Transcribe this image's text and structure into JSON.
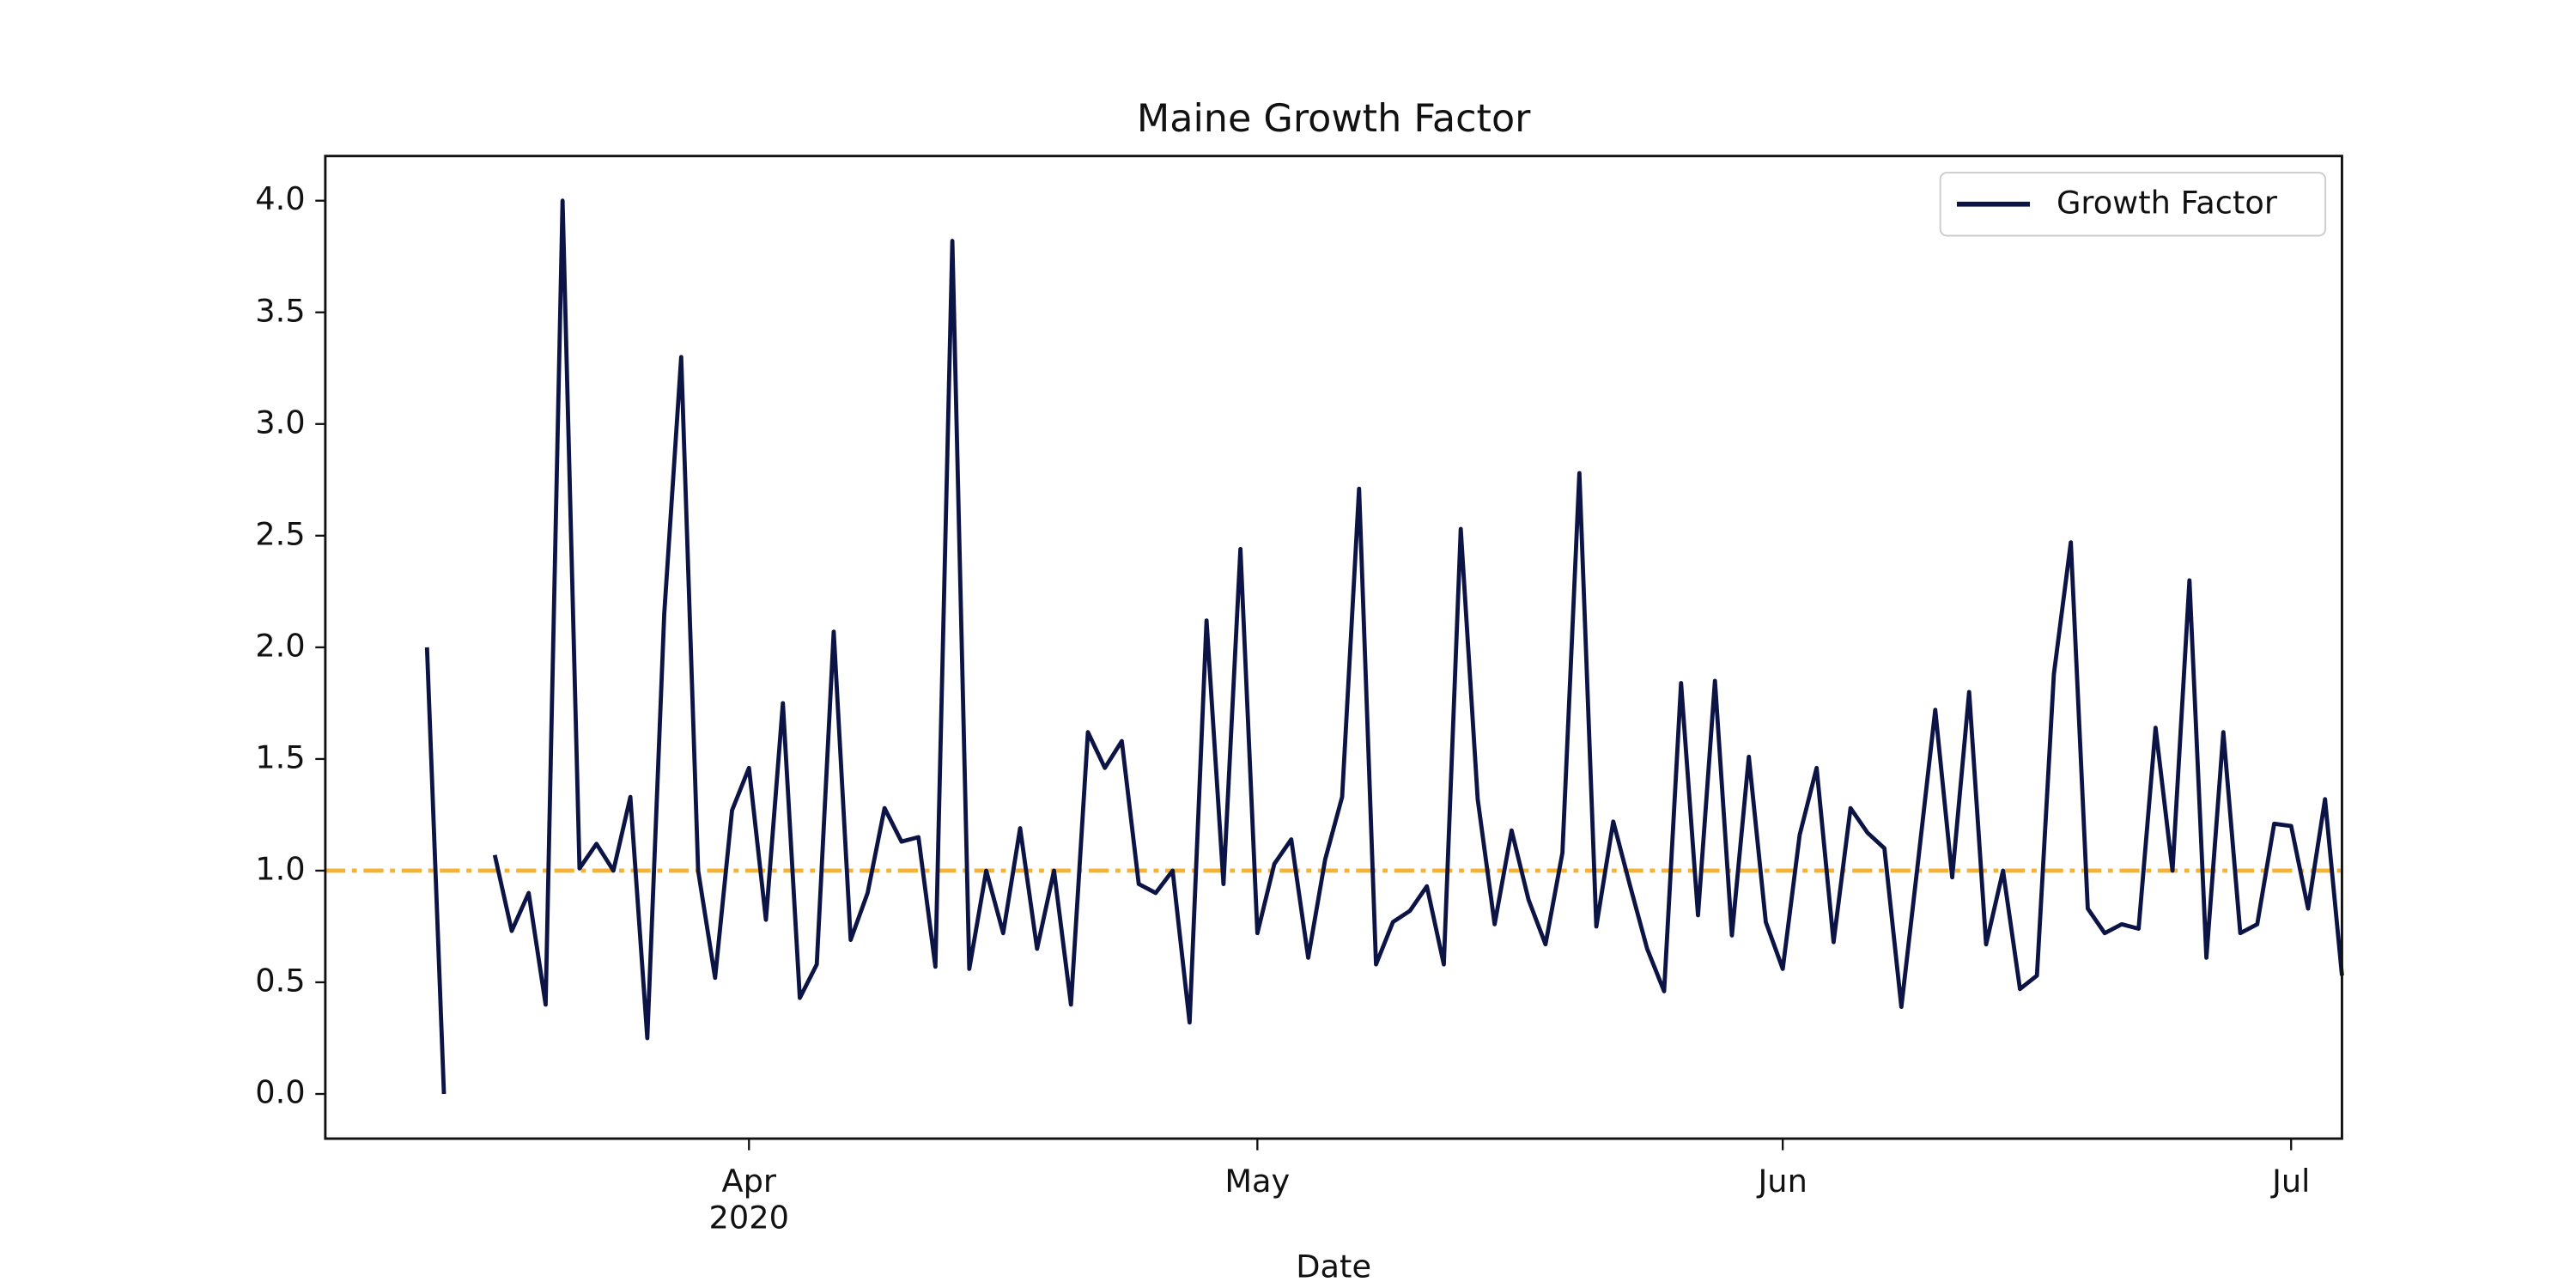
{
  "chart_data": {
    "type": "line",
    "title": "Maine Growth Factor",
    "xlabel": "Date",
    "x": [
      "2020-03-13",
      "2020-03-14",
      "2020-03-15",
      "2020-03-16",
      "2020-03-17",
      "2020-03-18",
      "2020-03-19",
      "2020-03-20",
      "2020-03-21",
      "2020-03-22",
      "2020-03-23",
      "2020-03-24",
      "2020-03-25",
      "2020-03-26",
      "2020-03-27",
      "2020-03-28",
      "2020-03-29",
      "2020-03-30",
      "2020-03-31",
      "2020-04-01",
      "2020-04-02",
      "2020-04-03",
      "2020-04-04",
      "2020-04-05",
      "2020-04-06",
      "2020-04-07",
      "2020-04-08",
      "2020-04-09",
      "2020-04-10",
      "2020-04-11",
      "2020-04-12",
      "2020-04-13",
      "2020-04-14",
      "2020-04-15",
      "2020-04-16",
      "2020-04-17",
      "2020-04-18",
      "2020-04-19",
      "2020-04-20",
      "2020-04-21",
      "2020-04-22",
      "2020-04-23",
      "2020-04-24",
      "2020-04-25",
      "2020-04-26",
      "2020-04-27",
      "2020-04-28",
      "2020-04-29",
      "2020-04-30",
      "2020-05-01",
      "2020-05-02",
      "2020-05-03",
      "2020-05-04",
      "2020-05-05",
      "2020-05-06",
      "2020-05-07",
      "2020-05-08",
      "2020-05-09",
      "2020-05-10",
      "2020-05-11",
      "2020-05-12",
      "2020-05-13",
      "2020-05-14",
      "2020-05-15",
      "2020-05-16",
      "2020-05-17",
      "2020-05-18",
      "2020-05-19",
      "2020-05-20",
      "2020-05-21",
      "2020-05-22",
      "2020-05-23",
      "2020-05-24",
      "2020-05-25",
      "2020-05-26",
      "2020-05-27",
      "2020-05-28",
      "2020-05-29",
      "2020-05-30",
      "2020-05-31",
      "2020-06-01",
      "2020-06-02",
      "2020-06-03",
      "2020-06-04",
      "2020-06-05",
      "2020-06-06",
      "2020-06-07",
      "2020-06-08",
      "2020-06-09",
      "2020-06-10",
      "2020-06-11",
      "2020-06-12",
      "2020-06-13",
      "2020-06-14",
      "2020-06-15",
      "2020-06-16",
      "2020-06-17",
      "2020-06-18",
      "2020-06-19",
      "2020-06-20",
      "2020-06-21",
      "2020-06-22",
      "2020-06-23",
      "2020-06-24",
      "2020-06-25",
      "2020-06-26",
      "2020-06-27",
      "2020-06-28",
      "2020-06-29",
      "2020-06-30",
      "2020-07-01",
      "2020-07-02",
      "2020-07-03",
      "2020-07-04"
    ],
    "series": [
      {
        "name": "Growth Factor",
        "color": "#0c1445",
        "values": [
          2.0,
          0.0,
          null,
          null,
          1.07,
          0.73,
          0.9,
          0.4,
          4.0,
          1.01,
          1.12,
          1.0,
          1.33,
          0.25,
          2.15,
          3.3,
          1.0,
          0.52,
          1.27,
          1.46,
          0.78,
          1.75,
          0.43,
          0.58,
          2.07,
          0.69,
          0.9,
          1.28,
          1.13,
          1.15,
          0.57,
          3.82,
          0.56,
          1.0,
          0.72,
          1.19,
          0.65,
          1.0,
          0.4,
          1.62,
          1.46,
          1.58,
          0.94,
          0.9,
          1.0,
          0.32,
          2.12,
          0.94,
          2.44,
          0.72,
          1.03,
          1.14,
          0.61,
          1.05,
          1.33,
          2.71,
          0.58,
          0.77,
          0.82,
          0.93,
          0.58,
          2.53,
          1.32,
          0.76,
          1.18,
          0.87,
          0.67,
          1.08,
          2.78,
          0.75,
          1.22,
          0.93,
          0.65,
          0.46,
          1.84,
          0.8,
          1.85,
          0.71,
          1.51,
          0.77,
          0.56,
          1.16,
          1.46,
          0.68,
          1.28,
          1.17,
          1.1,
          0.39,
          1.05,
          1.72,
          0.97,
          1.8,
          0.67,
          1.0,
          0.47,
          0.53,
          1.88,
          2.47,
          0.83,
          0.72,
          0.76,
          0.74,
          1.64,
          1.0,
          2.3,
          0.61,
          1.62,
          0.72,
          0.76,
          1.21,
          1.2,
          0.83,
          1.32,
          0.53
        ]
      }
    ],
    "hline": {
      "value": 1.0,
      "color": "#f5b335"
    },
    "xlim": [
      "2020-03-07",
      "2020-07-04"
    ],
    "xticks": [
      {
        "value": "2020-04-01",
        "label": "Apr\n2020"
      },
      {
        "value": "2020-05-01",
        "label": "May"
      },
      {
        "value": "2020-06-01",
        "label": "Jun"
      },
      {
        "value": "2020-07-01",
        "label": "Jul"
      }
    ],
    "ylim": [
      -0.2,
      4.2
    ],
    "yticks": [
      {
        "value": 0,
        "label": "0.0"
      },
      {
        "value": 0.5,
        "label": "0.5"
      },
      {
        "value": 1,
        "label": "1.0"
      },
      {
        "value": 1.5,
        "label": "1.5"
      },
      {
        "value": 2,
        "label": "2.0"
      },
      {
        "value": 2.5,
        "label": "2.5"
      },
      {
        "value": 3,
        "label": "3.0"
      },
      {
        "value": 3.5,
        "label": "3.5"
      },
      {
        "value": 4,
        "label": "4.0"
      }
    ],
    "legend": "upper right"
  }
}
